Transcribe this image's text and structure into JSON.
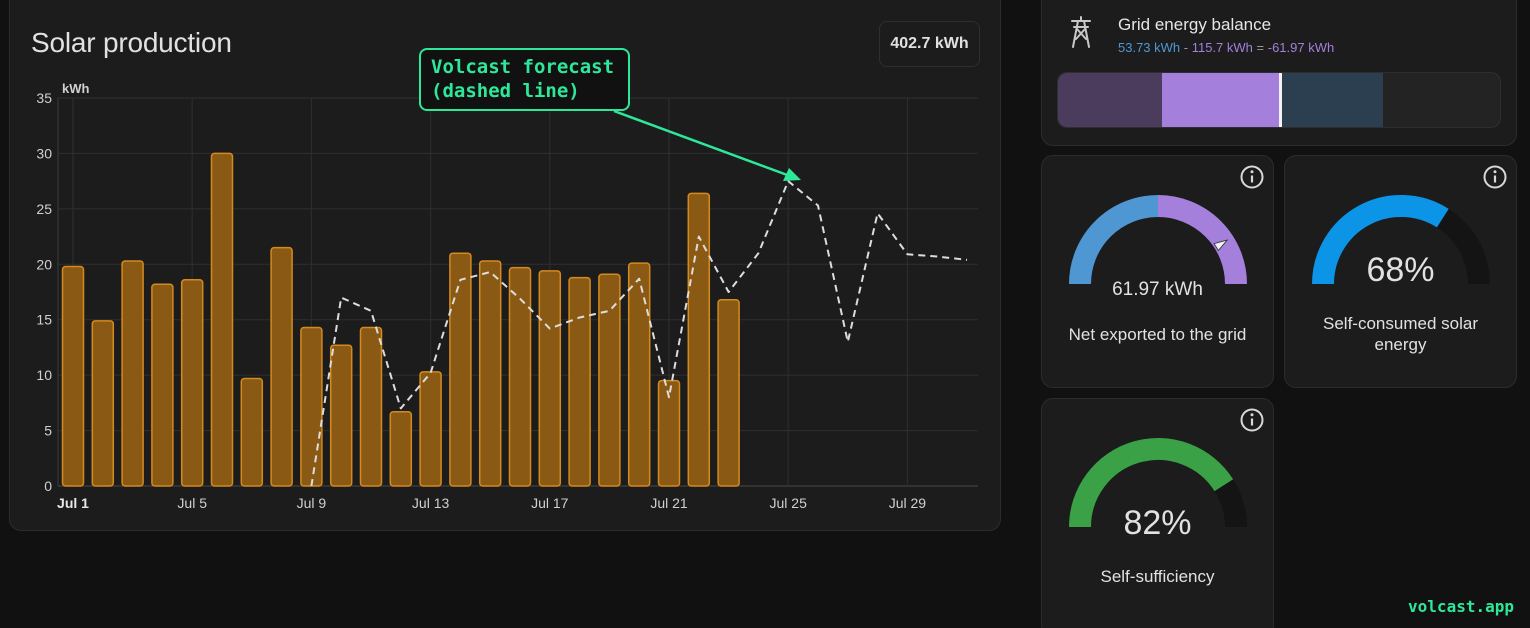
{
  "solar": {
    "title": "Solar production",
    "total": "402.7 kWh",
    "annotation_line1": "Volcast forecast",
    "annotation_line2": "(dashed line)"
  },
  "chart_data": {
    "type": "bar",
    "ylabel": "kWh",
    "ylim": [
      0,
      35
    ],
    "yticks": [
      0,
      5,
      10,
      15,
      20,
      25,
      30,
      35
    ],
    "xtick_labels": [
      "Jul 1",
      "Jul 5",
      "Jul 9",
      "Jul 13",
      "Jul 17",
      "Jul 21",
      "Jul 25",
      "Jul 29"
    ],
    "xtick_days": [
      1,
      5,
      9,
      13,
      17,
      21,
      25,
      29
    ],
    "xlim_days": [
      1,
      31
    ],
    "grid": true,
    "series": [
      {
        "kind": "bar",
        "color": "#c8821a",
        "days": [
          1,
          2,
          3,
          4,
          5,
          6,
          7,
          8,
          9,
          10,
          11,
          12,
          13,
          14,
          15,
          16,
          17,
          18,
          19,
          20,
          21,
          22,
          23
        ],
        "values": [
          19.8,
          14.9,
          20.3,
          18.2,
          18.6,
          30.0,
          9.7,
          21.5,
          14.3,
          12.7,
          14.3,
          6.7,
          10.3,
          21.0,
          20.3,
          19.7,
          19.4,
          18.8,
          19.1,
          20.1,
          9.5,
          26.4,
          16.8
        ]
      },
      {
        "kind": "line",
        "style": "dashed",
        "color": "#dddddd",
        "days": [
          9,
          10,
          11,
          12,
          13,
          14,
          15,
          16,
          17,
          18,
          19,
          20,
          21,
          22,
          23,
          24,
          25,
          26,
          27,
          28,
          29,
          30,
          31
        ],
        "values": [
          0,
          17.0,
          15.8,
          7.0,
          10.2,
          18.6,
          19.3,
          16.9,
          14.2,
          15.2,
          15.8,
          18.7,
          8.0,
          22.5,
          17.5,
          21.0,
          27.5,
          25.3,
          13.0,
          24.6,
          20.9,
          20.7,
          20.4
        ]
      }
    ]
  },
  "grid_balance": {
    "title": "Grid energy balance",
    "formula_a": "53.73 kWh",
    "formula_sep": " - ",
    "formula_b": "115.7 kWh",
    "formula_eq": " = ",
    "formula_c": "-61.97 kWh",
    "colors": {
      "import": "#4f97d3",
      "export": "#a47fdb"
    }
  },
  "net_export": {
    "value": "61.97 kWh",
    "label": "Net exported to the grid",
    "level": 0.82
  },
  "self_consumed": {
    "value": "68%",
    "label_line1": "Self-consumed solar",
    "label_line2": "energy",
    "level": 0.68,
    "color": "#0c95e6"
  },
  "self_sufficiency": {
    "value": "82%",
    "label": "Self-sufficiency",
    "level": 0.82,
    "color": "#3aa147"
  },
  "watermark": "volcast.app"
}
